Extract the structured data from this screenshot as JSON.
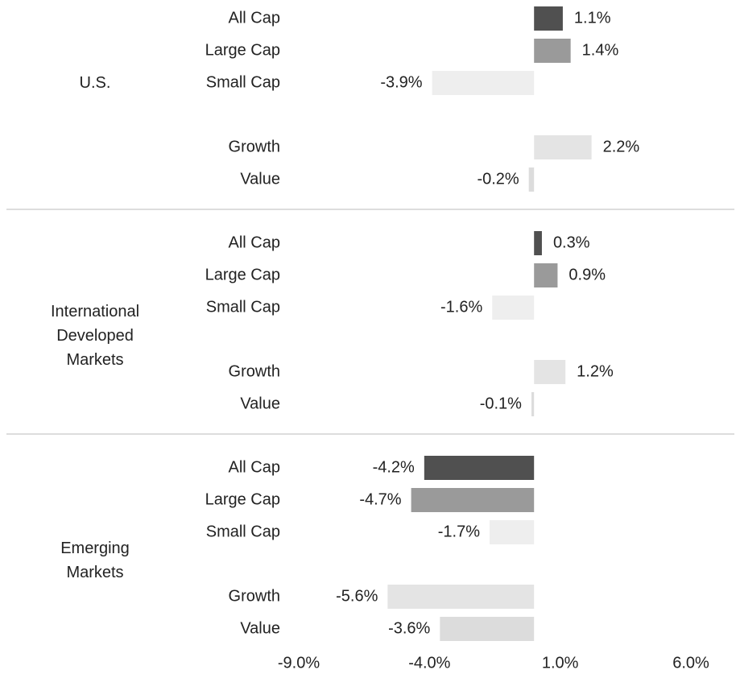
{
  "chart_data": {
    "type": "grouped-hbar",
    "category_colors": [
      "#505050",
      "#9a9a9a",
      "#eeeeee",
      "#e4e4e4",
      "#dcdcdc"
    ],
    "groups": [
      {
        "name": "U.S.",
        "categories": [
          "All Cap",
          "Large Cap",
          "Small Cap",
          "Growth",
          "Value"
        ],
        "values": [
          1.1,
          1.4,
          -3.9,
          2.2,
          -0.2
        ],
        "value_labels": [
          "1.1%",
          "1.4%",
          "-3.9%",
          "2.2%",
          "-0.2%"
        ]
      },
      {
        "name": "International Developed Markets",
        "categories": [
          "All Cap",
          "Large Cap",
          "Small Cap",
          "Growth",
          "Value"
        ],
        "values": [
          0.3,
          0.9,
          -1.6,
          1.2,
          -0.1
        ],
        "value_labels": [
          "0.3%",
          "0.9%",
          "-1.6%",
          "1.2%",
          "-0.1%"
        ]
      },
      {
        "name": "Emerging Markets",
        "categories": [
          "All Cap",
          "Large Cap",
          "Small Cap",
          "Growth",
          "Value"
        ],
        "values": [
          -4.2,
          -4.7,
          -1.7,
          -5.6,
          -3.6
        ],
        "value_labels": [
          "-4.2%",
          "-4.7%",
          "-1.7%",
          "-5.6%",
          "-3.6%"
        ]
      }
    ],
    "xlim": [
      -9,
      6
    ],
    "xticks": [
      {
        "value": -9,
        "label": "-9.0%"
      },
      {
        "value": -4,
        "label": "-4.0%"
      },
      {
        "value": 1,
        "label": "1.0%"
      },
      {
        "value": 6,
        "label": "6.0%"
      }
    ]
  }
}
